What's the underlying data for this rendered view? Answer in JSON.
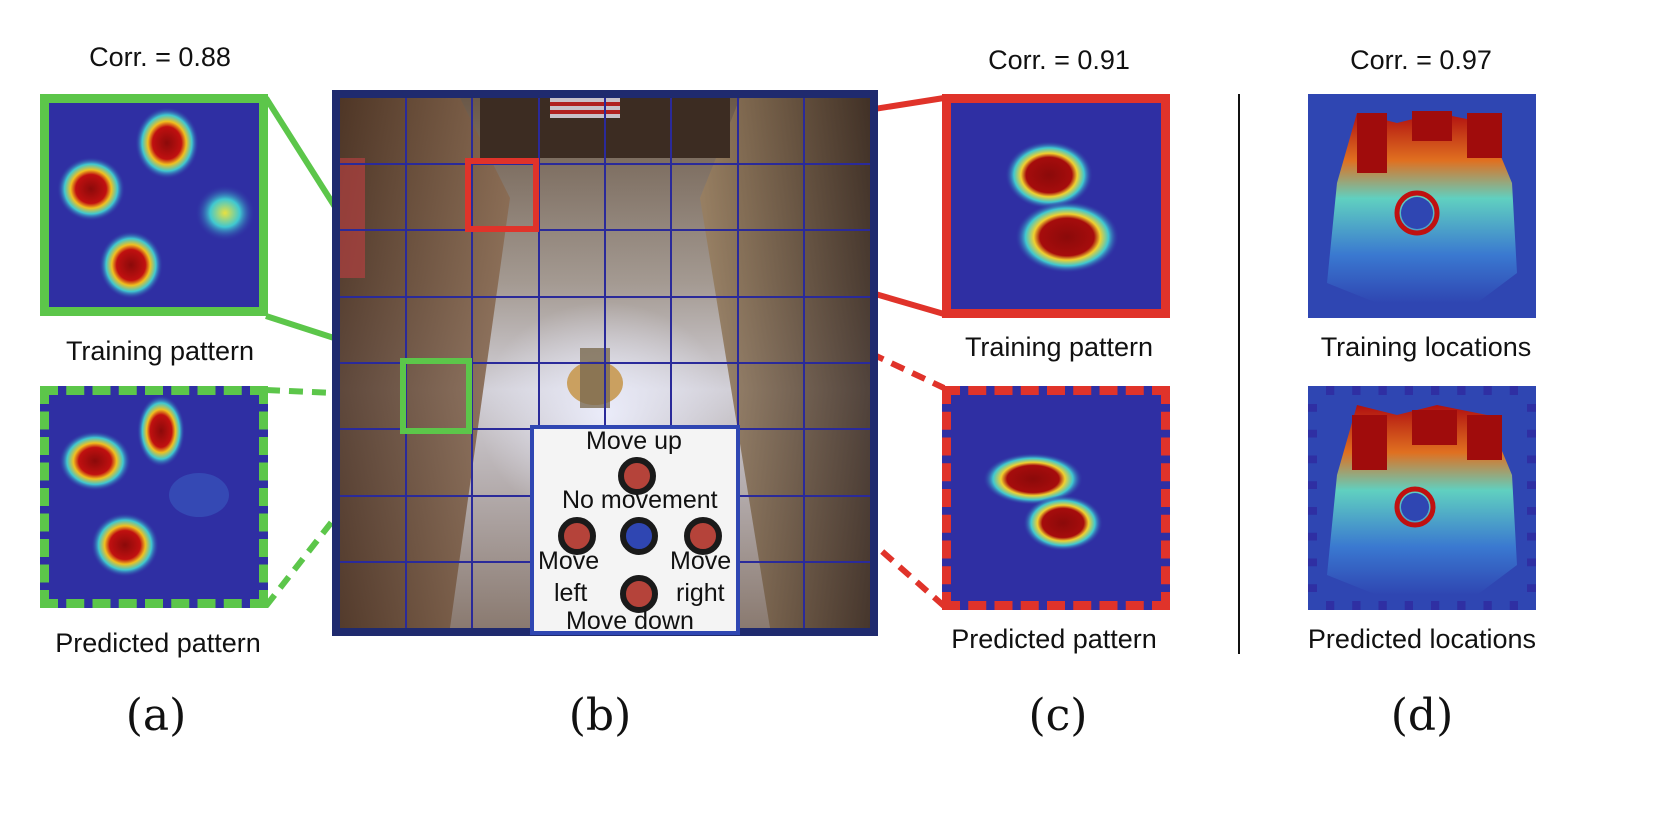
{
  "panel_a": {
    "corr": "Corr. = 0.88",
    "top_label": "Training pattern",
    "bottom_label": "Predicted pattern",
    "caption": "(a)"
  },
  "panel_b": {
    "caption": "(b)",
    "legend": {
      "up": "Move up",
      "none": "No movement",
      "left_1": "Move",
      "left_2": "left",
      "right_1": "Move",
      "right_2": "right",
      "down": "Move down"
    }
  },
  "panel_c": {
    "corr": "Corr. = 0.91",
    "top_label": "Training pattern",
    "bottom_label": "Predicted pattern",
    "caption": "(c)"
  },
  "panel_d": {
    "corr": "Corr. = 0.97",
    "top_label": "Training locations",
    "bottom_label": "Predicted locations",
    "caption": "(d)"
  },
  "colors": {
    "green": "#5cc64a",
    "red": "#e0332a",
    "navy": "#1f2a6e",
    "heat_low": "#2f2fa3",
    "heat_high": "#8b0a0a"
  }
}
